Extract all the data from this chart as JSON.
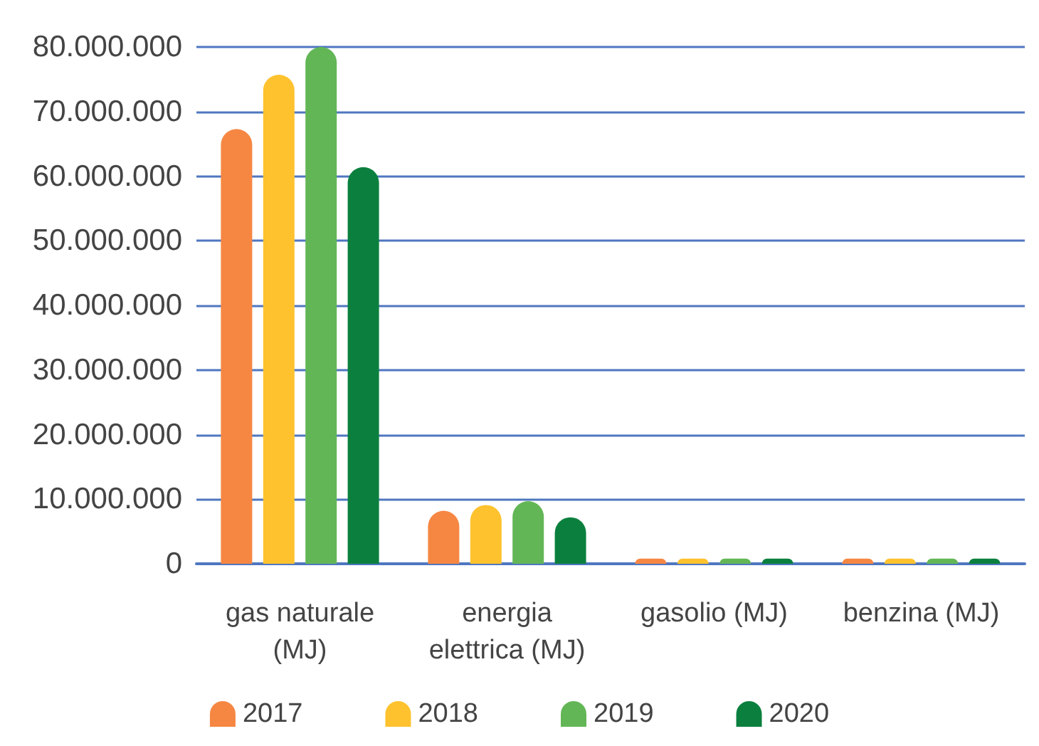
{
  "chart_data": {
    "type": "bar",
    "categories": [
      "gas naturale\n(MJ)",
      "energia\nelettrica (MJ)",
      "gasolio (MJ)",
      "benzina (MJ)"
    ],
    "series": [
      {
        "name": "2017",
        "color": "#f68743",
        "values": [
          67300000,
          8200000,
          800000,
          800000
        ]
      },
      {
        "name": "2018",
        "color": "#fec22f",
        "values": [
          75700000,
          9100000,
          800000,
          800000
        ]
      },
      {
        "name": "2019",
        "color": "#63b656",
        "values": [
          80000000,
          9700000,
          800000,
          800000
        ]
      },
      {
        "name": "2020",
        "color": "#0b803e",
        "values": [
          61400000,
          7200000,
          800000,
          800000
        ]
      }
    ],
    "ylim": [
      0,
      80000000
    ],
    "yticks": [
      0,
      {
        "value": 10000000,
        "label": "10.000.000"
      },
      {
        "value": 20000000,
        "label": "20.000.000"
      },
      {
        "value": 30000000,
        "label": "30.000.000"
      },
      {
        "value": 40000000,
        "label": "40.000.000"
      },
      {
        "value": 50000000,
        "label": "50.000.000"
      },
      {
        "value": 60000000,
        "label": "60.000.000"
      },
      {
        "value": 70000000,
        "label": "70.000.000"
      },
      {
        "value": 80000000,
        "label": "80.000.000"
      }
    ],
    "grid": "y",
    "legend": "bottom"
  }
}
